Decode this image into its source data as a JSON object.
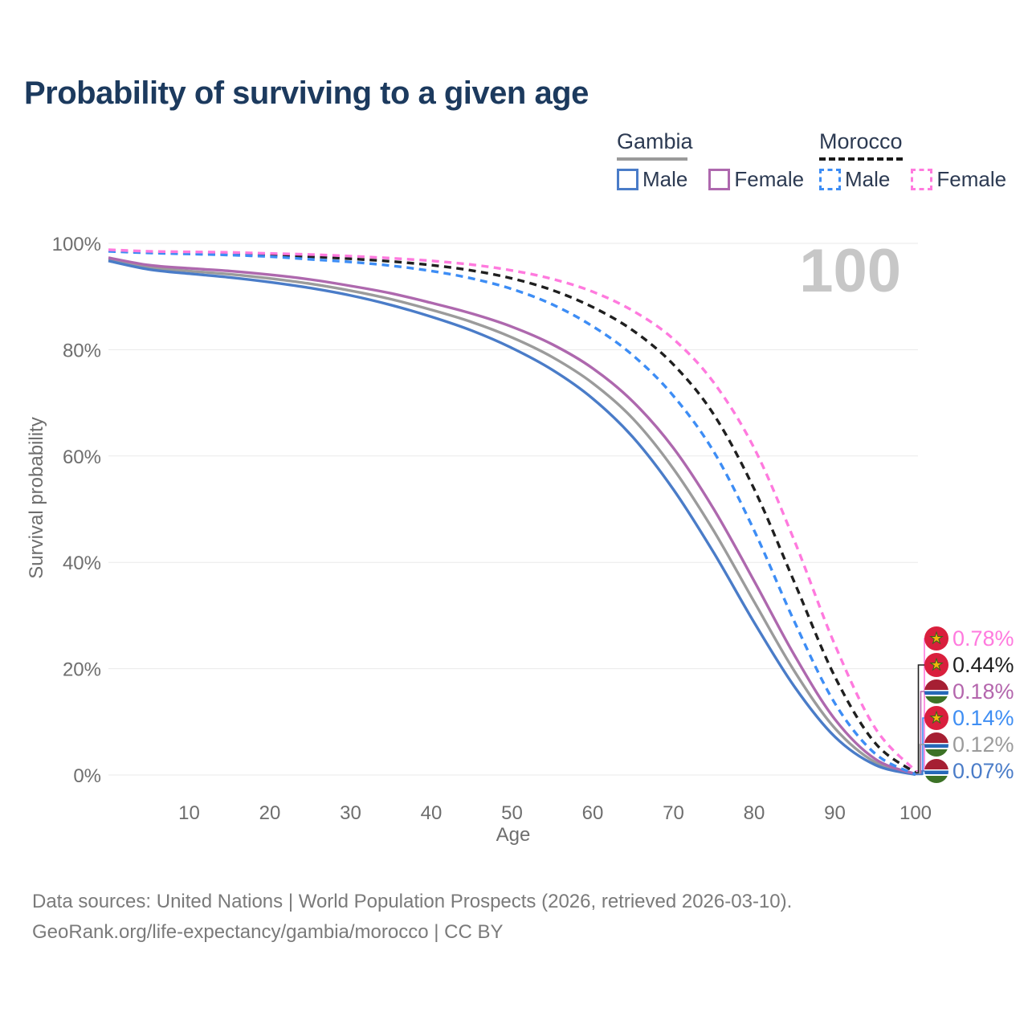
{
  "title": "Probability of surviving to a given age",
  "legend": {
    "groups": [
      {
        "name": "Gambia",
        "line_style": "solid",
        "underline_color": "#9a9a9a",
        "items": [
          {
            "label": "Male",
            "color": "#4a7cc8"
          },
          {
            "label": "Female",
            "color": "#ae68ae"
          }
        ]
      },
      {
        "name": "Morocco",
        "line_style": "dashed",
        "underline_color": "#1a1a1a",
        "items": [
          {
            "label": "Male",
            "color": "#3d8df5"
          },
          {
            "label": "Female",
            "color": "#ff7ade"
          }
        ]
      }
    ]
  },
  "chart_data": {
    "type": "line",
    "title": "Probability of surviving to a given age",
    "xlabel": "Age",
    "ylabel": "Survival probability",
    "xlim": [
      0,
      100
    ],
    "ylim": [
      0,
      100
    ],
    "x_ticks": [
      10,
      20,
      30,
      40,
      50,
      60,
      70,
      80,
      90,
      100
    ],
    "y_ticks": [
      0,
      20,
      40,
      60,
      80,
      100
    ],
    "y_tick_suffix": "%",
    "grid": "horizontal-only",
    "legend_position": "top-right",
    "age_label": "100",
    "x": [
      0,
      5,
      10,
      15,
      20,
      25,
      30,
      35,
      40,
      45,
      50,
      55,
      60,
      65,
      70,
      75,
      80,
      85,
      90,
      95,
      100
    ],
    "series": [
      {
        "name": "Gambia Both sexes",
        "country": "Gambia",
        "sex": "Both sexes",
        "line_style": "solid",
        "color": "#9b9b9b",
        "end_value_pct": 0.12,
        "values": [
          97.0,
          95.5,
          94.8,
          94.2,
          93.4,
          92.4,
          91.1,
          89.5,
          87.5,
          85.2,
          82.3,
          78.6,
          73.7,
          67.0,
          57.6,
          45.9,
          32.6,
          19.5,
          8.8,
          2.4,
          0.12
        ]
      },
      {
        "name": "Gambia Male",
        "country": "Gambia",
        "sex": "Male",
        "line_style": "solid",
        "color": "#4a7cc8",
        "end_value_pct": 0.07,
        "values": [
          96.7,
          95.1,
          94.3,
          93.6,
          92.7,
          91.6,
          90.2,
          88.4,
          86.2,
          83.6,
          80.3,
          76.2,
          70.8,
          63.5,
          53.7,
          41.8,
          28.7,
          16.6,
          7.2,
          1.9,
          0.07
        ]
      },
      {
        "name": "Gambia Female",
        "country": "Gambia",
        "sex": "Female",
        "line_style": "solid",
        "color": "#ae68ae",
        "end_value_pct": 0.18,
        "values": [
          97.3,
          95.9,
          95.3,
          94.8,
          94.1,
          93.2,
          92.0,
          90.6,
          88.8,
          86.8,
          84.3,
          81.0,
          76.5,
          70.2,
          61.5,
          50.0,
          36.5,
          22.5,
          10.5,
          3.0,
          0.18
        ]
      },
      {
        "name": "Morocco Both sexes",
        "country": "Morocco",
        "sex": "Both sexes",
        "line_style": "dashed",
        "color": "#1f1f1f",
        "end_value_pct": 0.44,
        "values": [
          98.6,
          98.3,
          98.2,
          98.0,
          97.8,
          97.5,
          97.1,
          96.6,
          95.9,
          94.9,
          93.4,
          91.2,
          88.0,
          83.6,
          77.2,
          67.8,
          53.8,
          36.2,
          18.5,
          6.0,
          0.44
        ]
      },
      {
        "name": "Morocco Male",
        "country": "Morocco",
        "sex": "Male",
        "line_style": "dashed",
        "color": "#3d8df5",
        "end_value_pct": 0.14,
        "values": [
          98.5,
          98.2,
          98.0,
          97.8,
          97.5,
          97.0,
          96.5,
          95.8,
          94.8,
          93.4,
          91.4,
          88.5,
          84.4,
          78.9,
          71.3,
          60.8,
          46.0,
          28.8,
          13.5,
          4.0,
          0.14
        ]
      },
      {
        "name": "Morocco Female",
        "country": "Morocco",
        "sex": "Female",
        "line_style": "dashed",
        "color": "#ff7ade",
        "end_value_pct": 0.78,
        "values": [
          98.8,
          98.5,
          98.4,
          98.3,
          98.1,
          97.9,
          97.6,
          97.2,
          96.7,
          96.0,
          94.9,
          93.3,
          90.9,
          87.3,
          82.0,
          73.8,
          61.5,
          44.0,
          24.5,
          8.8,
          0.78
        ]
      }
    ],
    "end_labels": [
      {
        "value": "0.78%",
        "series": "Morocco Female",
        "flag": "morocco",
        "color": "#ff7ade"
      },
      {
        "value": "0.44%",
        "series": "Morocco Both sexes",
        "flag": "morocco",
        "color": "#1f1f1f"
      },
      {
        "value": "0.18%",
        "series": "Gambia Female",
        "flag": "gambia",
        "color": "#b466ad"
      },
      {
        "value": "0.14%",
        "series": "Morocco Male",
        "flag": "morocco",
        "color": "#3f8ef3"
      },
      {
        "value": "0.12%",
        "series": "Gambia Both sexes",
        "flag": "gambia",
        "color": "#9b9b9b"
      },
      {
        "value": "0.07%",
        "series": "Gambia Male",
        "flag": "gambia",
        "color": "#4a7cc8"
      }
    ]
  },
  "footer": {
    "line1": "Data sources: United Nations | World Population Prospects (2026, retrieved 2026-03-10).",
    "line2": "GeoRank.org/life-expectancy/gambia/morocco | CC BY"
  }
}
